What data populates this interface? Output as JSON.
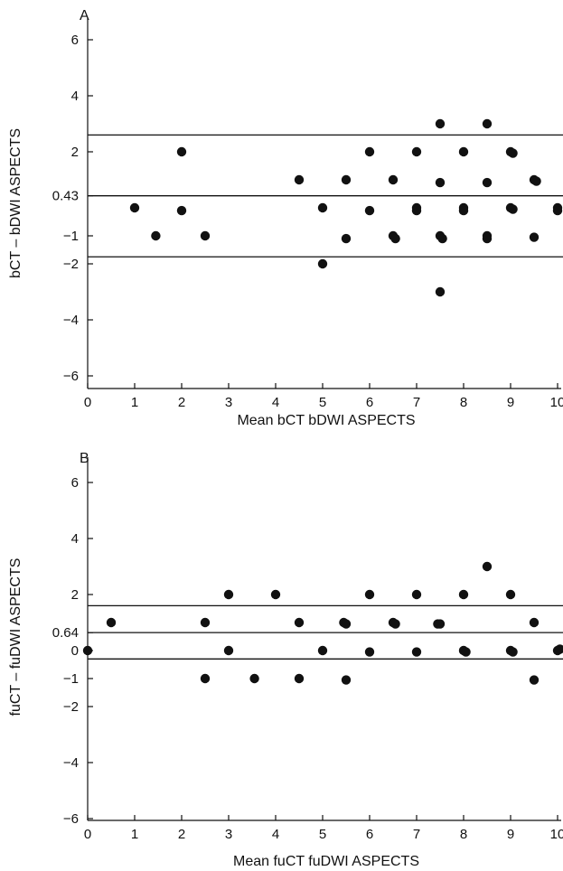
{
  "chart_data": [
    {
      "type": "scatter",
      "panel_label": "A",
      "xlabel": "Mean bCT bDWI ASPECTS",
      "ylabel": "bCT – bDWI ASPECTS",
      "xlim": [
        0,
        10
      ],
      "ylim": [
        -6.5,
        6.5
      ],
      "x_ticks": [
        0,
        1,
        2,
        3,
        4,
        5,
        6,
        7,
        8,
        9,
        10
      ],
      "y_ticks": [
        6,
        4,
        2,
        -1,
        -2,
        -4,
        -6
      ],
      "y_tick_labels": [
        "6",
        "4",
        "2",
        "−1",
        "−2",
        "−4",
        "−6"
      ],
      "reference_lines": [
        {
          "y": 2.6
        },
        {
          "y": 0.43,
          "label": "0.43"
        },
        {
          "y": -1.75
        }
      ],
      "points": [
        [
          1,
          0
        ],
        [
          1.45,
          -1
        ],
        [
          2,
          2
        ],
        [
          2,
          -0.1
        ],
        [
          2.5,
          -1
        ],
        [
          4.5,
          1
        ],
        [
          5,
          0
        ],
        [
          5,
          -2
        ],
        [
          5.5,
          1
        ],
        [
          5.5,
          -1.1
        ],
        [
          6,
          2
        ],
        [
          6,
          -0.1
        ],
        [
          6.5,
          1
        ],
        [
          6.5,
          -1
        ],
        [
          6.55,
          -1.1
        ],
        [
          7,
          2
        ],
        [
          7,
          0
        ],
        [
          7,
          -0.1
        ],
        [
          7.5,
          3
        ],
        [
          7.5,
          0.9
        ],
        [
          7.5,
          -1
        ],
        [
          7.55,
          -1.1
        ],
        [
          7.5,
          -3
        ],
        [
          8,
          2
        ],
        [
          8,
          0
        ],
        [
          8,
          -0.1
        ],
        [
          8.5,
          3
        ],
        [
          8.5,
          0.9
        ],
        [
          8.5,
          -1
        ],
        [
          8.5,
          -1.1
        ],
        [
          9,
          2
        ],
        [
          9.05,
          1.95
        ],
        [
          9,
          0
        ],
        [
          9.05,
          -0.05
        ],
        [
          9.5,
          1
        ],
        [
          9.55,
          0.95
        ],
        [
          9.5,
          -1.05
        ],
        [
          10,
          0
        ],
        [
          10,
          -0.1
        ]
      ]
    },
    {
      "type": "scatter",
      "panel_label": "B",
      "xlabel": "Mean fuCT fuDWI ASPECTS",
      "ylabel": "fuCT – fuDWI ASPECTS",
      "xlim": [
        0,
        10
      ],
      "ylim": [
        -6.5,
        6.5
      ],
      "x_ticks": [
        0,
        1,
        2,
        3,
        4,
        5,
        6,
        7,
        8,
        9,
        10
      ],
      "y_ticks": [
        6,
        4,
        2,
        0,
        -1,
        -2,
        -4,
        -6
      ],
      "y_tick_labels": [
        "6",
        "4",
        "2",
        "0",
        "−1",
        "−2",
        "−4",
        "−6"
      ],
      "reference_lines": [
        {
          "y": 1.6
        },
        {
          "y": 0.64,
          "label": "0.64"
        },
        {
          "y": -0.3
        }
      ],
      "points": [
        [
          0,
          0
        ],
        [
          0.5,
          1
        ],
        [
          2.5,
          1
        ],
        [
          2.5,
          -1
        ],
        [
          3,
          2
        ],
        [
          3,
          0
        ],
        [
          3.55,
          -1
        ],
        [
          4,
          2
        ],
        [
          4.5,
          1
        ],
        [
          4.5,
          -1
        ],
        [
          5,
          0
        ],
        [
          5.45,
          1
        ],
        [
          5.5,
          0.95
        ],
        [
          5.5,
          -1.05
        ],
        [
          6,
          2
        ],
        [
          6,
          -0.05
        ],
        [
          6.5,
          1
        ],
        [
          6.55,
          0.95
        ],
        [
          7,
          2
        ],
        [
          7,
          -0.05
        ],
        [
          7.45,
          0.95
        ],
        [
          7.5,
          0.95
        ],
        [
          8,
          2
        ],
        [
          8,
          0
        ],
        [
          8.05,
          -0.05
        ],
        [
          8.5,
          3
        ],
        [
          9,
          2
        ],
        [
          9,
          0
        ],
        [
          9.05,
          -0.05
        ],
        [
          9.5,
          1
        ],
        [
          9.5,
          -1.05
        ],
        [
          10,
          0
        ],
        [
          10.05,
          0.05
        ]
      ]
    }
  ]
}
